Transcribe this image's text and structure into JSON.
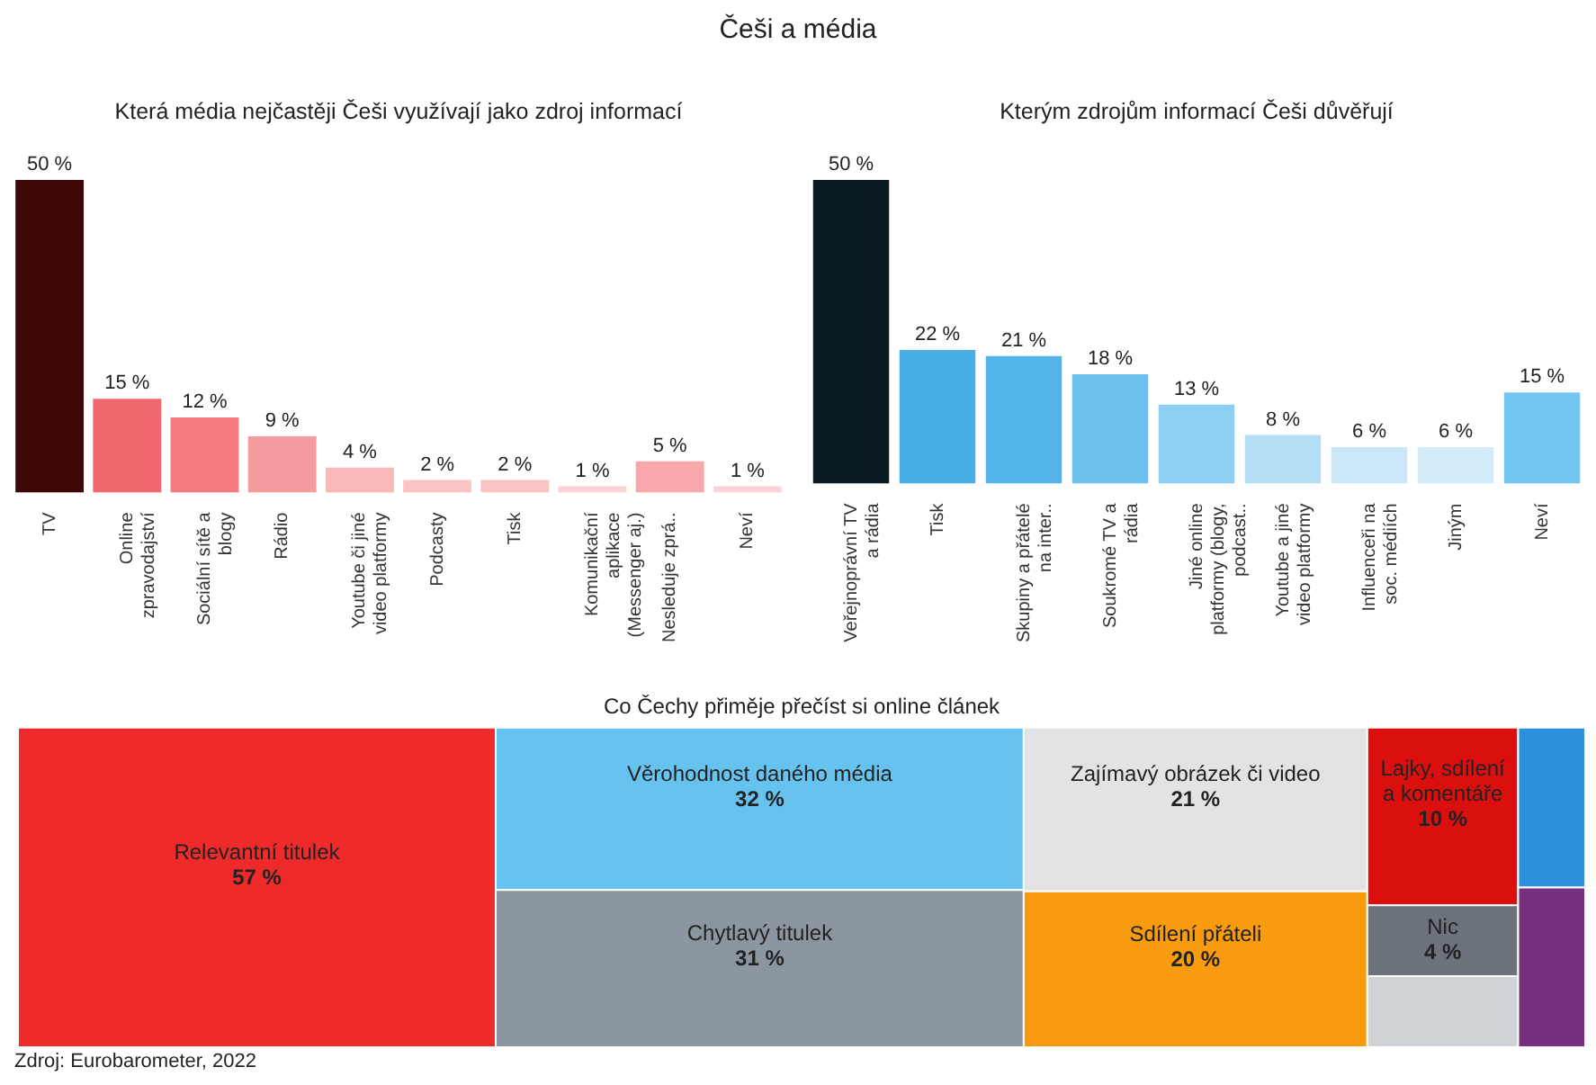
{
  "chart_data": [
    {
      "type": "bar",
      "title": "Češi a média",
      "subtitle": "Která média nejčastěji Češi využívají jako zdroj informací",
      "categories": [
        "TV",
        "Online zpravodajství",
        "Sociální sítě a blogy",
        "Rádio",
        "Youtube či jiné video platformy",
        "Podcasty",
        "Tisk",
        "Komunikační aplikace (Messenger aj.)",
        "Nesleduje zprá..",
        "Neví"
      ],
      "values": [
        50,
        15,
        12,
        9,
        4,
        2,
        2,
        1,
        5,
        1
      ],
      "colors": [
        "#3e0707",
        "#f1696f",
        "#f47a7e",
        "#f79a9d",
        "#f9b8ba",
        "#fac3c4",
        "#fac3c4",
        "#fcd4d5",
        "#f8a8ab",
        "#fcd4d5"
      ],
      "value_labels": [
        "50 %",
        "15 %",
        "12 %",
        "9 %",
        "4 %",
        "2 %",
        "2 %",
        "1 %",
        "5 %",
        "1 %"
      ],
      "grid": false,
      "legend": false
    },
    {
      "type": "bar",
      "title": "Kterým zdrojům informací Češi důvěřují",
      "categories": [
        "Veřejnoprávní TV a rádia",
        "Tisk",
        "Skupiny a přátelé na inter..",
        "Soukromé TV a rádia",
        "Jiné online platformy (blogy, podcast..",
        "Youtube a jiné video platformy",
        "Influenceři na soc. médiích",
        "Jiným",
        "Neví"
      ],
      "values": [
        50,
        22,
        21,
        18,
        13,
        8,
        6,
        6,
        15
      ],
      "colors": [
        "#0b1a22",
        "#47aee6",
        "#53b4e9",
        "#6cc1ee",
        "#8ccff3",
        "#b3def6",
        "#cbe7f8",
        "#d3ebf9",
        "#71c5f0"
      ],
      "value_labels": [
        "50 %",
        "22 %",
        "21 %",
        "18 %",
        "13 %",
        "8 %",
        "6 %",
        "6 %",
        "15 %"
      ],
      "grid": false,
      "legend": false
    },
    {
      "type": "other",
      "title": "Co Čechy přiměje přečíst si online článek",
      "categories": [
        "Relevantní titulek",
        "Věrohodnost daného média",
        "Chytlavý titulek",
        "Zajímavý obrázek či video",
        "Sdílení přáteli",
        "Lajky, sdílení a komentáře",
        "Nic",
        null,
        null,
        null
      ],
      "values": [
        57,
        32,
        31,
        21,
        20,
        10,
        4,
        null,
        null,
        null
      ],
      "colors": [
        "#ee2a2a",
        "#66c3ef",
        "#8c96a0",
        "#e2e3e5",
        "#f99b0f",
        "#dc0f0f",
        "#6c737b",
        "#cfd2d6",
        "#2b8fdc",
        "#77307e"
      ],
      "value_labels": [
        "57 %",
        "32 %",
        "31 %",
        "21 %",
        "20 %",
        "10 %",
        "4 %",
        null,
        null,
        null
      ],
      "annotations": [
        "Zdroj: Eurobarometer, 2022"
      ]
    }
  ]
}
